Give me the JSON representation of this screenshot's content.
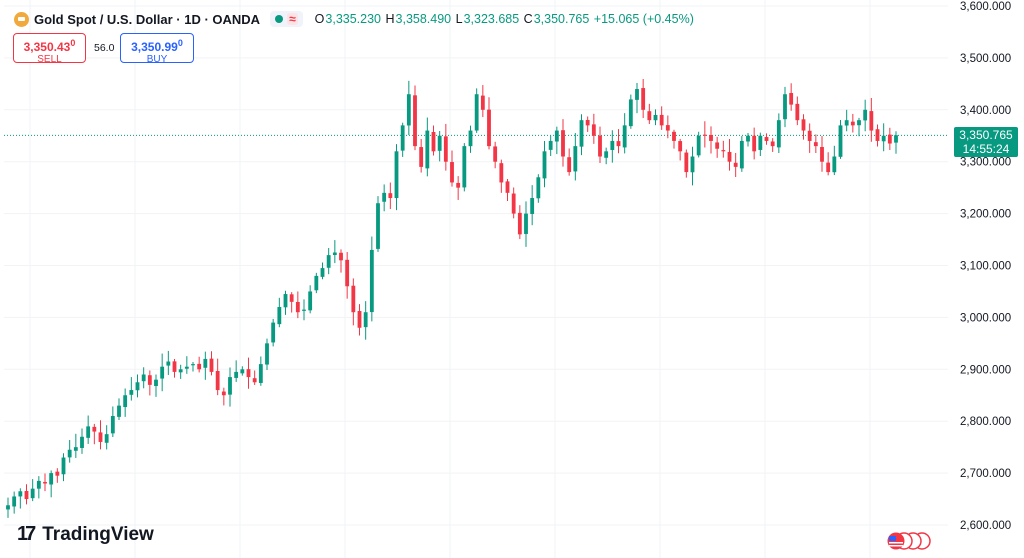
{
  "header": {
    "symbol_title": "Gold Spot / U.S. Dollar · 1D · OANDA",
    "ohlc": {
      "open_label": "O",
      "open": "3,335.230",
      "high_label": "H",
      "high": "3,358.490",
      "low_label": "L",
      "low": "3,323.685",
      "close_label": "C",
      "close": "3,350.765",
      "change": "+15.065 (+0.45%)"
    }
  },
  "trade": {
    "sell_price": "3,350.43",
    "sell_price_small": "0",
    "sell_label": "SELL",
    "spread": "56.0",
    "buy_price": "3,350.99",
    "buy_price_small": "0",
    "buy_label": "BUY"
  },
  "price_tag": {
    "price": "3,350.765",
    "countdown": "14:55:24"
  },
  "branding": {
    "logo_mark": "17",
    "name": "TradingView"
  },
  "colors": {
    "up": "#089981",
    "down": "#f23645",
    "grid": "#f2f3f5",
    "axis_text": "#131722",
    "last_price_line": "#089981"
  },
  "chart_data": {
    "type": "candlestick",
    "title": "Gold Spot / U.S. Dollar · 1D · OANDA",
    "ylim": [
      2580,
      3610
    ],
    "y_ticks": [
      2600,
      2700,
      2800,
      2900,
      3000,
      3100,
      3200,
      3300,
      3400,
      3500,
      3600
    ],
    "y_tick_labels": [
      "2,600.000",
      "2,700.000",
      "2,800.000",
      "2,900.000",
      "3,000.000",
      "3,100.000",
      "3,200.000",
      "3,300.000",
      "3,400.000",
      "3,500.000",
      "3,600.000"
    ],
    "grid": true,
    "last_price": 3350.765,
    "closes": [
      2638,
      2655,
      2665,
      2650,
      2670,
      2685,
      2680,
      2700,
      2695,
      2730,
      2745,
      2750,
      2770,
      2790,
      2780,
      2760,
      2775,
      2810,
      2830,
      2850,
      2860,
      2875,
      2890,
      2870,
      2880,
      2905,
      2915,
      2895,
      2900,
      2905,
      2910,
      2900,
      2920,
      2895,
      2860,
      2850,
      2885,
      2895,
      2900,
      2885,
      2875,
      2910,
      2950,
      2990,
      3020,
      3045,
      3030,
      3010,
      3015,
      3050,
      3080,
      3095,
      3120,
      3125,
      3110,
      3060,
      3010,
      2980,
      3010,
      3130,
      3220,
      3240,
      3230,
      3320,
      3370,
      3430,
      3330,
      3290,
      3360,
      3320,
      3350,
      3300,
      3260,
      3250,
      3330,
      3360,
      3430,
      3400,
      3330,
      3300,
      3260,
      3240,
      3200,
      3160,
      3200,
      3230,
      3270,
      3320,
      3340,
      3360,
      3310,
      3280,
      3330,
      3380,
      3370,
      3350,
      3310,
      3320,
      3340,
      3330,
      3370,
      3420,
      3440,
      3400,
      3380,
      3390,
      3370,
      3360,
      3340,
      3320,
      3280,
      3310,
      3350,
      3350,
      3340,
      3325,
      3320,
      3300,
      3290,
      3340,
      3350,
      3320,
      3350,
      3340,
      3330,
      3380,
      3430,
      3410,
      3380,
      3360,
      3340,
      3330,
      3300,
      3280,
      3310,
      3370,
      3380,
      3370,
      3380,
      3400,
      3360,
      3340,
      3350,
      3335,
      3351
    ]
  }
}
